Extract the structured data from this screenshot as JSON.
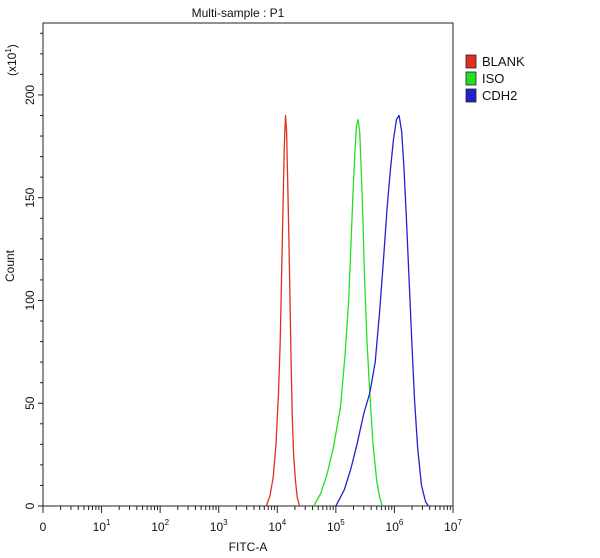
{
  "chart_data": {
    "type": "line",
    "title": "Multi-sample : P1",
    "xlabel": "FITC-A",
    "ylabel": "Count",
    "y_multiplier_label": "(x10",
    "y_multiplier_exp": "1",
    "y_multiplier_close": ")",
    "x_scale": "log",
    "xlim": [
      0,
      10000000
    ],
    "ylim": [
      0,
      235
    ],
    "y_ticks": [
      0,
      50,
      100,
      150,
      200
    ],
    "x_ticks": [
      {
        "base": "0",
        "exp": "",
        "value": 0
      },
      {
        "base": "10",
        "exp": "1",
        "value": 10
      },
      {
        "base": "10",
        "exp": "2",
        "value": 100
      },
      {
        "base": "10",
        "exp": "3",
        "value": 1000
      },
      {
        "base": "10",
        "exp": "4",
        "value": 10000
      },
      {
        "base": "10",
        "exp": "5",
        "value": 100000
      },
      {
        "base": "10",
        "exp": "6",
        "value": 1000000
      },
      {
        "base": "10",
        "exp": "7",
        "value": 10000000
      }
    ],
    "grid": false,
    "legend_position": "right",
    "series": [
      {
        "name": "BLANK",
        "color": "#e0301e",
        "points": [
          [
            6500,
            0
          ],
          [
            7500,
            5
          ],
          [
            8500,
            14
          ],
          [
            9500,
            30
          ],
          [
            10500,
            55
          ],
          [
            11200,
            80
          ],
          [
            11800,
            110
          ],
          [
            12500,
            145
          ],
          [
            13200,
            175
          ],
          [
            13800,
            190
          ],
          [
            14400,
            182
          ],
          [
            15000,
            160
          ],
          [
            15800,
            130
          ],
          [
            16500,
            100
          ],
          [
            17200,
            70
          ],
          [
            18000,
            45
          ],
          [
            19000,
            25
          ],
          [
            20500,
            12
          ],
          [
            22000,
            4
          ],
          [
            24000,
            0
          ]
        ]
      },
      {
        "name": "ISO",
        "color": "#22e022",
        "points": [
          [
            42000,
            0
          ],
          [
            55000,
            6
          ],
          [
            70000,
            15
          ],
          [
            90000,
            28
          ],
          [
            120000,
            48
          ],
          [
            145000,
            75
          ],
          [
            165000,
            100
          ],
          [
            180000,
            125
          ],
          [
            195000,
            150
          ],
          [
            210000,
            170
          ],
          [
            225000,
            185
          ],
          [
            240000,
            188
          ],
          [
            255000,
            182
          ],
          [
            270000,
            165
          ],
          [
            290000,
            140
          ],
          [
            310000,
            110
          ],
          [
            340000,
            80
          ],
          [
            380000,
            55
          ],
          [
            430000,
            30
          ],
          [
            500000,
            12
          ],
          [
            560000,
            4
          ],
          [
            620000,
            0
          ]
        ]
      },
      {
        "name": "CDH2",
        "color": "#2222cc",
        "points": [
          [
            100000,
            0
          ],
          [
            140000,
            8
          ],
          [
            180000,
            18
          ],
          [
            230000,
            30
          ],
          [
            300000,
            45
          ],
          [
            380000,
            55
          ],
          [
            470000,
            70
          ],
          [
            560000,
            95
          ],
          [
            650000,
            120
          ],
          [
            750000,
            145
          ],
          [
            850000,
            163
          ],
          [
            960000,
            178
          ],
          [
            1080000,
            188
          ],
          [
            1200000,
            190
          ],
          [
            1330000,
            182
          ],
          [
            1450000,
            165
          ],
          [
            1600000,
            140
          ],
          [
            1780000,
            110
          ],
          [
            1980000,
            80
          ],
          [
            2200000,
            52
          ],
          [
            2500000,
            28
          ],
          [
            2900000,
            10
          ],
          [
            3400000,
            2
          ],
          [
            3800000,
            0
          ]
        ]
      }
    ]
  }
}
